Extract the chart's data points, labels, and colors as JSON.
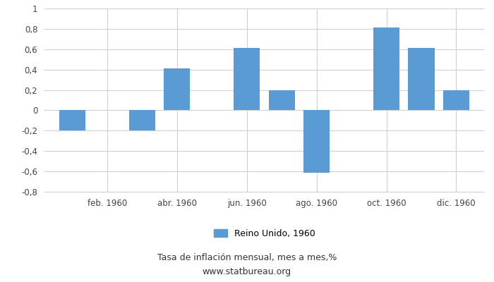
{
  "all_values": [
    -0.2,
    null,
    -0.2,
    0.41,
    null,
    0.61,
    0.2,
    -0.61,
    null,
    0.81,
    0.61,
    0.2
  ],
  "bar_color": "#5b9bd5",
  "ylim": [
    -0.8,
    1.0
  ],
  "yticks": [
    -0.8,
    -0.6,
    -0.4,
    -0.2,
    0,
    0.2,
    0.4,
    0.6,
    0.8,
    1.0
  ],
  "ytick_labels": [
    "-0,8",
    "-0,6",
    "-0,4",
    "-0,2",
    "0",
    "0,2",
    "0,4",
    "0,6",
    "0,8",
    "1"
  ],
  "xtick_labels": [
    "feb. 1960",
    "abr. 1960",
    "jun. 1960",
    "ago. 1960",
    "oct. 1960",
    "dic. 1960"
  ],
  "legend_label": "Reino Unido, 1960",
  "title": "Tasa de inflación mensual, mes a mes,%",
  "subtitle": "www.statbureau.org",
  "background_color": "#ffffff",
  "grid_color": "#d0d0d0"
}
